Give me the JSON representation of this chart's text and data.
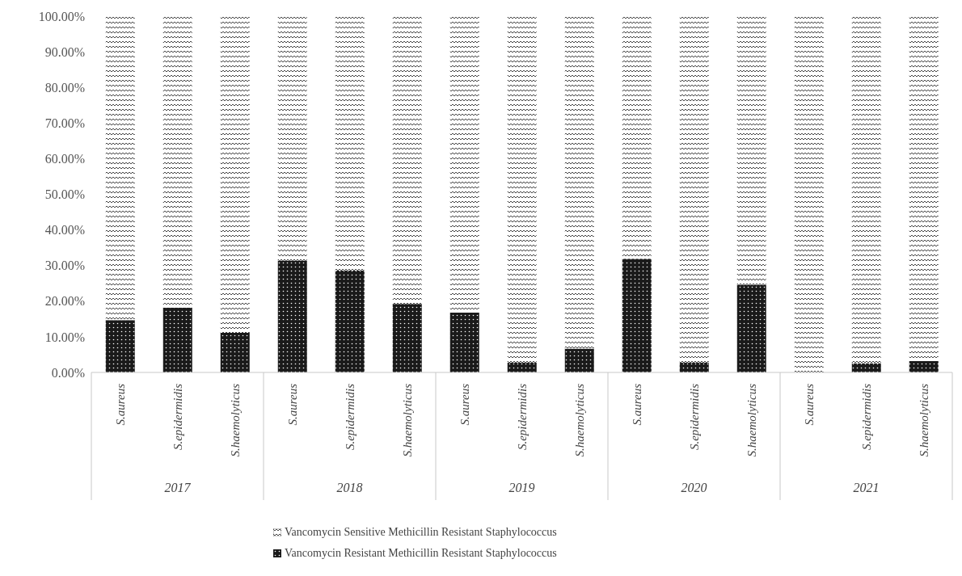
{
  "chart_data": {
    "type": "bar",
    "stacked": true,
    "categories": [
      "S.aureus",
      "S.epidermidis",
      "S.haemolyticus",
      "S.aureus",
      "S.epidermidis",
      "S.haemolyticus",
      "S.aureus",
      "S.epidermidis",
      "S.haemolyticus",
      "S.aureus",
      "S.epidermidis",
      "S.haemolyticus",
      "S.aureus",
      "S.epidermidis",
      "S.haemolyticus"
    ],
    "annotations": [
      "2017",
      "2018",
      "2019",
      "2020",
      "2021"
    ],
    "series": [
      {
        "name": "Vancomycin Resistant Methicillin Resistant Staphylococcus",
        "color": "#1a1a1a",
        "values": [
          14.7,
          18.2,
          11.1,
          31.4,
          28.6,
          19.2,
          16.8,
          2.8,
          6.7,
          31.9,
          2.8,
          24.6,
          0,
          2.6,
          3.2
        ]
      },
      {
        "name": "Vancomycin Sensitive Methicillin Resistant Staphylococcus",
        "color": "#333333",
        "values": [
          85.3,
          81.8,
          88.9,
          68.6,
          71.4,
          80.8,
          83.2,
          97.2,
          93.3,
          68.1,
          97.2,
          75.4,
          100,
          97.4,
          96.8
        ]
      }
    ],
    "ylim": [
      0,
      100
    ],
    "yticks": [
      {
        "value": 0,
        "label": "0.00%"
      },
      {
        "value": 10,
        "label": "10.00%"
      },
      {
        "value": 20,
        "label": "20.00%"
      },
      {
        "value": 30,
        "label": "30.00%"
      },
      {
        "value": 40,
        "label": "40.00%"
      },
      {
        "value": 50,
        "label": "50.00%"
      },
      {
        "value": 60,
        "label": "60.00%"
      },
      {
        "value": 70,
        "label": "70.00%"
      },
      {
        "value": 80,
        "label": "80.00%"
      },
      {
        "value": 90,
        "label": "90.00%"
      },
      {
        "value": 100,
        "label": "100.00%"
      }
    ],
    "grid": false,
    "legend": "bottom"
  }
}
